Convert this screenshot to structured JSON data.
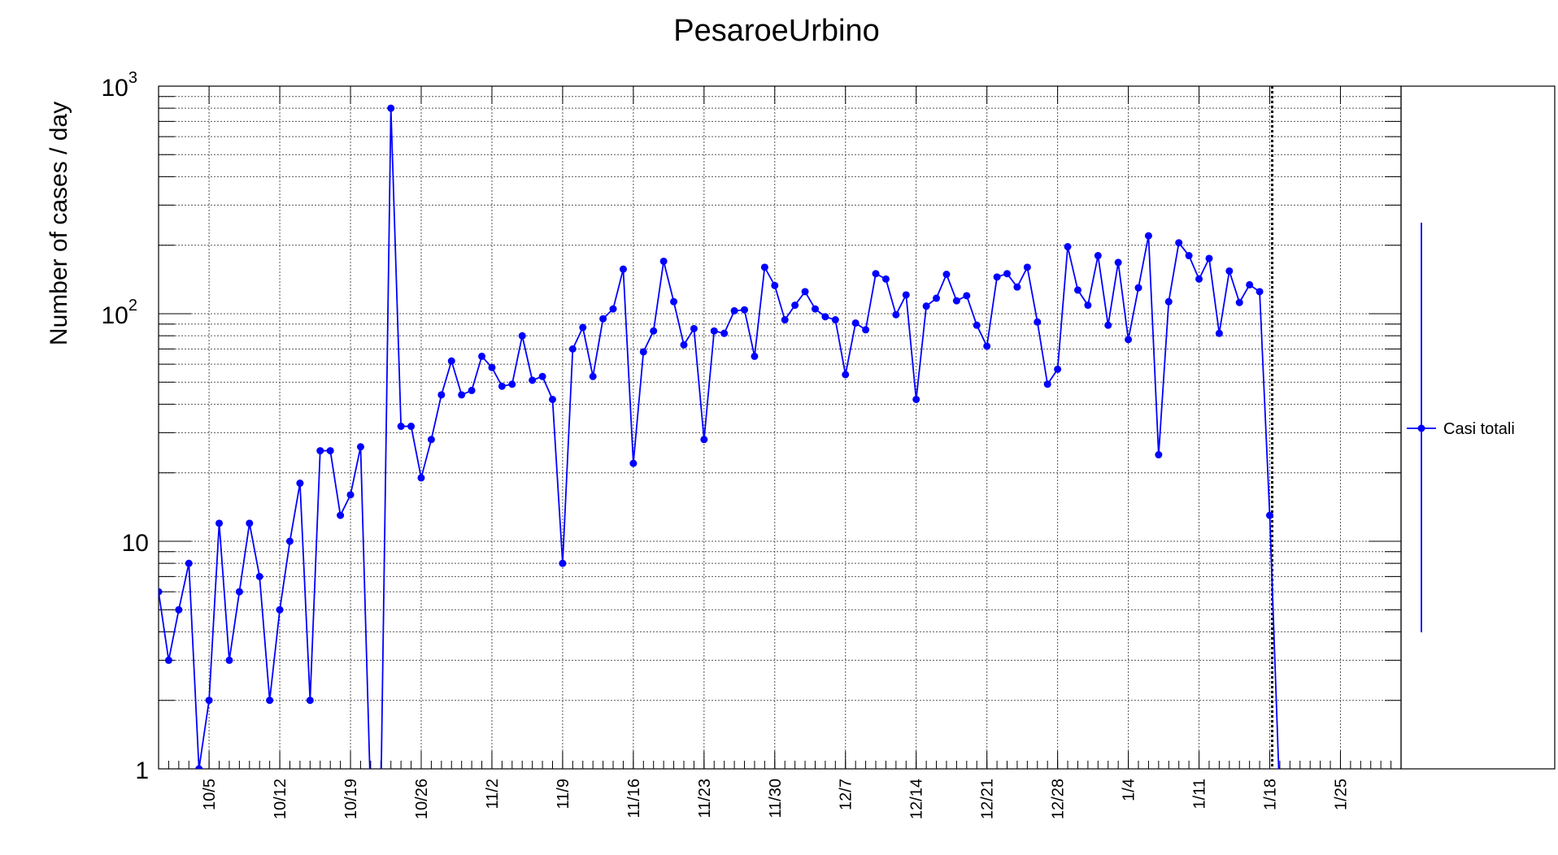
{
  "chart_data": {
    "type": "line",
    "title": "PesaroeUrbino",
    "xlabel": "",
    "ylabel": "Number of cases / day",
    "yscale": "log",
    "ylim": [
      1,
      1000
    ],
    "ytick_labels": [
      {
        "value": 1,
        "base": "1",
        "exp": ""
      },
      {
        "value": 10,
        "base": "10",
        "exp": ""
      },
      {
        "value": 100,
        "base": "10",
        "exp": "2"
      },
      {
        "value": 1000,
        "base": "10",
        "exp": "3"
      }
    ],
    "xlim": [
      "2020-09-30",
      "2021-01-31"
    ],
    "xtick_labels": [
      {
        "date": "2020-10-05",
        "label": "10/5"
      },
      {
        "date": "2020-10-12",
        "label": "10/12"
      },
      {
        "date": "2020-10-19",
        "label": "10/19"
      },
      {
        "date": "2020-10-26",
        "label": "10/26"
      },
      {
        "date": "2020-11-02",
        "label": "11/2"
      },
      {
        "date": "2020-11-09",
        "label": "11/9"
      },
      {
        "date": "2020-11-16",
        "label": "11/16"
      },
      {
        "date": "2020-11-23",
        "label": "11/23"
      },
      {
        "date": "2020-11-30",
        "label": "11/30"
      },
      {
        "date": "2020-12-07",
        "label": "12/7"
      },
      {
        "date": "2020-12-14",
        "label": "12/14"
      },
      {
        "date": "2020-12-21",
        "label": "12/21"
      },
      {
        "date": "2020-12-28",
        "label": "12/28"
      },
      {
        "date": "2021-01-04",
        "label": "1/4"
      },
      {
        "date": "2021-01-11",
        "label": "1/11"
      },
      {
        "date": "2021-01-18",
        "label": "1/18"
      },
      {
        "date": "2021-01-25",
        "label": "1/25"
      }
    ],
    "grid": true,
    "legend_position": "right",
    "marker_line": "2021-01-18",
    "series": [
      {
        "name": "Casi totali",
        "color": "#0000ff",
        "x": [
          "2020-09-30",
          "2020-10-01",
          "2020-10-02",
          "2020-10-03",
          "2020-10-04",
          "2020-10-05",
          "2020-10-06",
          "2020-10-07",
          "2020-10-08",
          "2020-10-09",
          "2020-10-10",
          "2020-10-11",
          "2020-10-12",
          "2020-10-13",
          "2020-10-14",
          "2020-10-15",
          "2020-10-16",
          "2020-10-17",
          "2020-10-18",
          "2020-10-19",
          "2020-10-20",
          "2020-10-21",
          "2020-10-22",
          "2020-10-23",
          "2020-10-24",
          "2020-10-25",
          "2020-10-26",
          "2020-10-27",
          "2020-10-28",
          "2020-10-29",
          "2020-10-30",
          "2020-10-31",
          "2020-11-01",
          "2020-11-02",
          "2020-11-03",
          "2020-11-04",
          "2020-11-05",
          "2020-11-06",
          "2020-11-07",
          "2020-11-08",
          "2020-11-09",
          "2020-11-10",
          "2020-11-11",
          "2020-11-12",
          "2020-11-13",
          "2020-11-14",
          "2020-11-15",
          "2020-11-16",
          "2020-11-17",
          "2020-11-18",
          "2020-11-19",
          "2020-11-20",
          "2020-11-21",
          "2020-11-22",
          "2020-11-23",
          "2020-11-24",
          "2020-11-25",
          "2020-11-26",
          "2020-11-27",
          "2020-11-28",
          "2020-11-29",
          "2020-11-30",
          "2020-12-01",
          "2020-12-02",
          "2020-12-03",
          "2020-12-04",
          "2020-12-05",
          "2020-12-06",
          "2020-12-07",
          "2020-12-08",
          "2020-12-09",
          "2020-12-10",
          "2020-12-11",
          "2020-12-12",
          "2020-12-13",
          "2020-12-14",
          "2020-12-15",
          "2020-12-16",
          "2020-12-17",
          "2020-12-18",
          "2020-12-19",
          "2020-12-20",
          "2020-12-21",
          "2020-12-22",
          "2020-12-23",
          "2020-12-24",
          "2020-12-25",
          "2020-12-26",
          "2020-12-27",
          "2020-12-28",
          "2020-12-29",
          "2020-12-30",
          "2020-12-31",
          "2021-01-01",
          "2021-01-02",
          "2021-01-03",
          "2021-01-04",
          "2021-01-05",
          "2021-01-06",
          "2021-01-07",
          "2021-01-08",
          "2021-01-09",
          "2021-01-10",
          "2021-01-11",
          "2021-01-12",
          "2021-01-13",
          "2021-01-14",
          "2021-01-15",
          "2021-01-16",
          "2021-01-17",
          "2021-01-18",
          "2021-01-19"
        ],
        "values": [
          6,
          3,
          5,
          8,
          1,
          2,
          12,
          3,
          6,
          12,
          7,
          2,
          5,
          10,
          18,
          2,
          25,
          25,
          13,
          16,
          26,
          0,
          0,
          800,
          32,
          32,
          19,
          28,
          44,
          62,
          44,
          46,
          65,
          58,
          48,
          49,
          80,
          51,
          53,
          42,
          8,
          70,
          87,
          53,
          95,
          105,
          157,
          22,
          68,
          84,
          170,
          113,
          73,
          86,
          28,
          84,
          82,
          103,
          104,
          65,
          160,
          133,
          94,
          109,
          125,
          105,
          97,
          94,
          54,
          91,
          85,
          150,
          142,
          99,
          121,
          42,
          108,
          117,
          149,
          114,
          120,
          89,
          72,
          145,
          150,
          131,
          160,
          92,
          49,
          57,
          197,
          127,
          109,
          180,
          89,
          168,
          77,
          130,
          220,
          24,
          113,
          205,
          180,
          142,
          175,
          82,
          154,
          112,
          134,
          125,
          13,
          0
        ]
      }
    ]
  }
}
